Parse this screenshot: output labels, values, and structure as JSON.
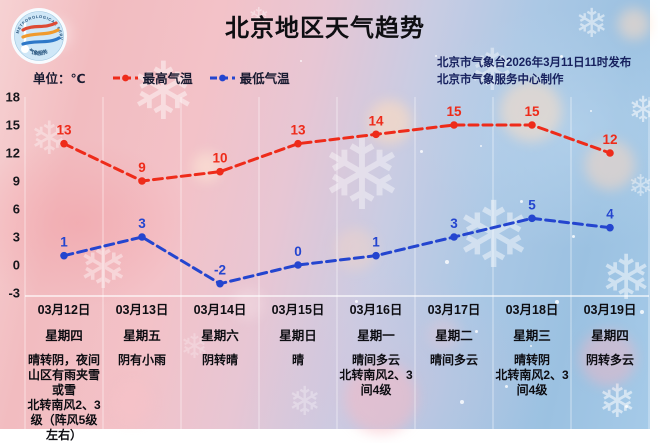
{
  "header": {
    "title": "北京地区天气趋势",
    "publisher_line1": "北京市气象台2026年3月11日11时发布",
    "publisher_line2": "北京市气象服务中心制作",
    "unit_label": "单位：℃",
    "logo_text_top": "METEOROLOGICAL SERVICE",
    "logo_text_bottom": "气象服务"
  },
  "legend": [
    {
      "label": "最高气温",
      "color": "#ee2b1a"
    },
    {
      "label": "最低气温",
      "color": "#2445cf"
    }
  ],
  "chart_data": {
    "type": "line",
    "categories": [
      "03月12日",
      "03月13日",
      "03月14日",
      "03月15日",
      "03月16日",
      "03月17日",
      "03月18日",
      "03月19日"
    ],
    "series": [
      {
        "name": "最高气温",
        "color": "#ee2b1a",
        "values": [
          13,
          9,
          10,
          13,
          14,
          15,
          15,
          12
        ]
      },
      {
        "name": "最低气温",
        "color": "#2445cf",
        "values": [
          1,
          3,
          -2,
          0,
          1,
          3,
          5,
          4
        ]
      }
    ],
    "yticks": [
      18,
      15,
      12,
      9,
      6,
      3,
      0,
      -3
    ],
    "ylim": [
      -4,
      19
    ],
    "grid": "vertical-only",
    "legend_position": "top",
    "line_style": "dashed"
  },
  "columns": [
    {
      "date": "03月12日",
      "weekday": "星期四",
      "weather": [
        "晴转阴，夜间山区有雨夹雪或雪",
        "北转南风2、3级（阵风5级左右）"
      ]
    },
    {
      "date": "03月13日",
      "weekday": "星期五",
      "weather": [
        "阴有小雨"
      ]
    },
    {
      "date": "03月14日",
      "weekday": "星期六",
      "weather": [
        "阴转晴"
      ]
    },
    {
      "date": "03月15日",
      "weekday": "星期日",
      "weather": [
        "晴"
      ]
    },
    {
      "date": "03月16日",
      "weekday": "星期一",
      "weather": [
        "晴间多云",
        "北转南风2、3间4级"
      ]
    },
    {
      "date": "03月17日",
      "weekday": "星期二",
      "weather": [
        "晴间多云"
      ]
    },
    {
      "date": "03月18日",
      "weekday": "星期三",
      "weather": [
        "晴转阴",
        "北转南风2、3间4级"
      ]
    },
    {
      "date": "03月19日",
      "weekday": "星期四",
      "weather": [
        "阴转多云"
      ]
    }
  ]
}
